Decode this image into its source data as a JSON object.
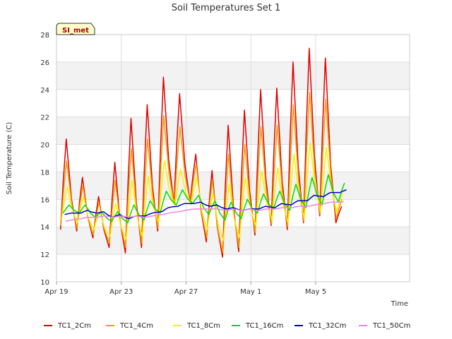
{
  "chart_data": {
    "type": "line",
    "title": "Soil Temperatures Set 1",
    "xlabel": "Time",
    "ylabel": "Soil Temperature (C)",
    "ylim": [
      10,
      28
    ],
    "xlim_days_from_apr19": [
      0,
      21.8
    ],
    "y_ticks": [
      "10",
      "12",
      "14",
      "16",
      "18",
      "20",
      "22",
      "24",
      "26",
      "28"
    ],
    "x_ticks": [
      {
        "label": "Apr 19",
        "day": 0
      },
      {
        "label": "Apr 23",
        "day": 4
      },
      {
        "label": "Apr 27",
        "day": 8
      },
      {
        "label": "May 1",
        "day": 12
      },
      {
        "label": "May 5",
        "day": 16
      }
    ],
    "grid": true,
    "band_colors": [
      "#ffffff",
      "#f2f2f2"
    ],
    "station_badge": "SI_met",
    "legend_position": "bottom",
    "daily_extremes_note": "daily min/max per series, days Apr 19 - May 6",
    "series": [
      {
        "name": "TC1_2Cm",
        "color": "#e00000",
        "day_min": [
          13.8,
          13.7,
          13.2,
          12.5,
          12.1,
          12.5,
          13.7,
          15.7,
          15.8,
          12.9,
          11.8,
          12.2,
          13.4,
          14.1,
          13.8,
          14.3,
          14.8,
          14.3
        ],
        "day_max": [
          20.4,
          17.6,
          16.2,
          18.7,
          21.9,
          22.9,
          24.9,
          23.7,
          19.3,
          18.1,
          21.4,
          22.5,
          24.0,
          24.1,
          26.0,
          27.0,
          26.3,
          15.5
        ]
      },
      {
        "name": "TC1_4Cm",
        "color": "#f0a000",
        "day_min": [
          14.1,
          13.9,
          13.4,
          12.8,
          12.5,
          12.8,
          13.9,
          15.6,
          15.7,
          13.2,
          12.1,
          12.5,
          13.6,
          14.2,
          14.0,
          14.4,
          14.9,
          14.6
        ],
        "day_max": [
          18.8,
          17.0,
          15.8,
          17.4,
          19.7,
          20.4,
          22.1,
          21.3,
          18.6,
          17.4,
          19.3,
          20.0,
          21.3,
          21.4,
          22.9,
          23.8,
          23.3,
          16.0
        ]
      },
      {
        "name": "TC1_8Cm",
        "color": "#ffee00",
        "day_min": [
          14.5,
          14.3,
          13.8,
          13.3,
          13.1,
          13.3,
          14.3,
          15.5,
          15.6,
          13.8,
          13.0,
          13.2,
          14.1,
          14.5,
          14.3,
          14.6,
          15.1,
          15.1
        ],
        "day_max": [
          16.9,
          16.2,
          15.1,
          15.7,
          17.4,
          17.7,
          18.8,
          18.2,
          17.6,
          16.4,
          17.1,
          17.6,
          18.1,
          18.3,
          19.3,
          20.1,
          19.8,
          16.5
        ]
      },
      {
        "name": "TC1_16Cm",
        "color": "#00dd00",
        "day_min": [
          15.0,
          15.0,
          14.7,
          14.4,
          14.3,
          14.5,
          15.0,
          15.6,
          15.7,
          14.9,
          14.5,
          14.6,
          15.0,
          15.3,
          15.2,
          15.4,
          15.6,
          15.8
        ],
        "day_max": [
          15.6,
          15.6,
          15.1,
          15.1,
          15.6,
          15.9,
          16.6,
          16.7,
          16.3,
          15.9,
          15.8,
          16.0,
          16.4,
          16.6,
          17.1,
          17.6,
          17.8,
          17.2
        ]
      },
      {
        "name": "TC1_32Cm",
        "color": "#0000cc",
        "day_min": [
          14.9,
          15.0,
          15.0,
          14.7,
          14.6,
          14.8,
          15.1,
          15.5,
          15.7,
          15.5,
          15.3,
          15.2,
          15.3,
          15.4,
          15.6,
          15.9,
          16.2,
          16.5
        ],
        "day_max": [
          15.0,
          15.2,
          15.1,
          14.9,
          14.8,
          15.0,
          15.4,
          15.7,
          15.8,
          15.6,
          15.4,
          15.3,
          15.5,
          15.7,
          15.9,
          16.3,
          16.5,
          16.7
        ]
      },
      {
        "name": "TC1_50Cm",
        "color": "#ee82ee",
        "day_min": [
          14.4,
          14.6,
          14.7,
          14.7,
          14.7,
          14.7,
          14.9,
          15.1,
          15.3,
          15.3,
          15.2,
          15.2,
          15.2,
          15.3,
          15.4,
          15.5,
          15.7,
          15.8
        ],
        "day_max": [
          14.5,
          14.7,
          14.8,
          14.8,
          14.8,
          14.8,
          15.0,
          15.2,
          15.3,
          15.3,
          15.3,
          15.3,
          15.3,
          15.4,
          15.5,
          15.6,
          15.8,
          15.9
        ]
      }
    ]
  }
}
